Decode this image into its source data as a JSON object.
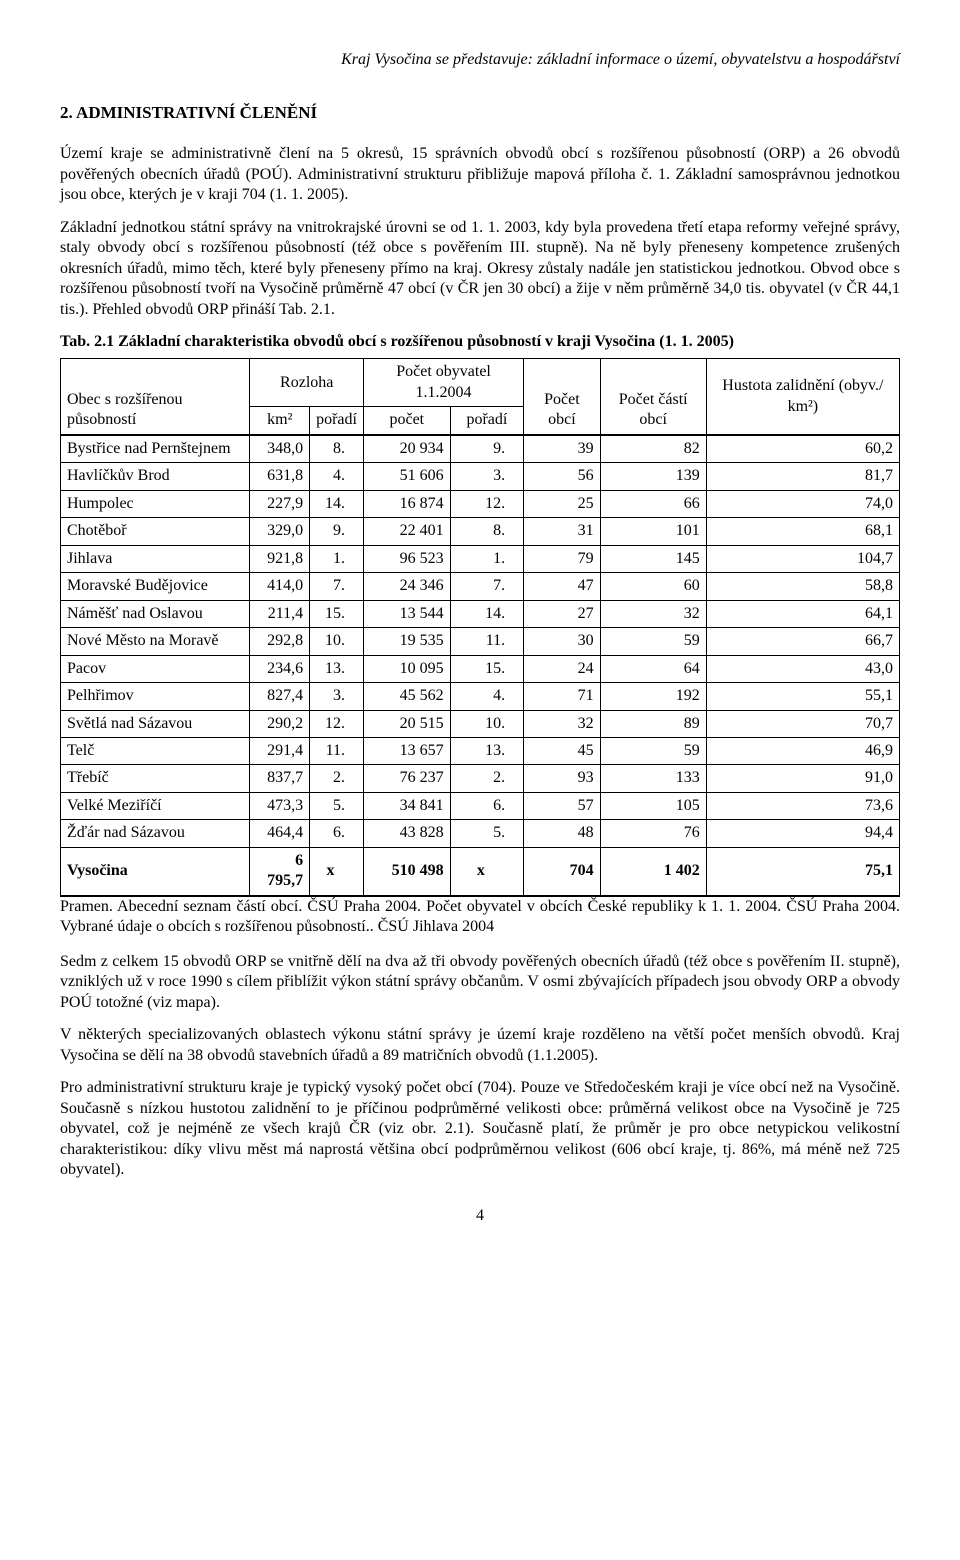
{
  "running_head": "Kraj Vysočina se představuje: základní informace o území, obyvatelstvu a hospodářství",
  "section_title": "2. ADMINISTRATIVNÍ ČLENĚNÍ",
  "para1": "Území kraje se administrativně člení na 5 okresů, 15 správních obvodů obcí s rozšířenou působností (ORP) a 26 obvodů pověřených obecních úřadů (POÚ). Administrativní strukturu přibližuje mapová příloha č. 1. Základní samosprávnou jednotkou jsou obce, kterých je v kraji 704 (1. 1. 2005).",
  "para2": "Základní jednotkou státní správy na vnitrokrajské úrovni se od 1. 1. 2003, kdy byla provedena třetí etapa reformy veřejné správy, staly obvody obcí s rozšířenou působností (též obce s pověřením III. stupně). Na ně byly přeneseny kompetence zrušených okresních úřadů, mimo těch, které byly přeneseny přímo na kraj. Okresy zůstaly nadále jen statistickou jednotkou. Obvod obce s rozšířenou působností tvoří na Vysočině průměrně 47 obcí (v ČR jen 30 obcí) a žije v něm průměrně 34,0 tis. obyvatel (v ČR 44,1 tis.). Přehled obvodů ORP přináší Tab. 2.1.",
  "table_caption": "Tab. 2.1 Základní charakteristika obvodů obcí s rozšířenou působností v kraji Vysočina (1. 1. 2005)",
  "headers": {
    "obec": "Obec s rozšířenou působností",
    "rozloha": "Rozloha",
    "km2": "km²",
    "poradi": "pořadí",
    "pocet_obyv": "Počet obyvatel 1.1.2004",
    "pocet": "počet",
    "pocet_obci": "Počet obcí",
    "casti_obci": "Počet částí obcí",
    "hustota": "Hustota zalidnění (obyv./ km²)"
  },
  "rows": [
    {
      "obec": "Bystřice nad Pernštejnem",
      "km2": "348,0",
      "r1": "8.",
      "pop": "20 934",
      "r2": "9.",
      "obci": "39",
      "casti": "82",
      "hust": "60,2"
    },
    {
      "obec": "Havlíčkův Brod",
      "km2": "631,8",
      "r1": "4.",
      "pop": "51 606",
      "r2": "3.",
      "obci": "56",
      "casti": "139",
      "hust": "81,7"
    },
    {
      "obec": "Humpolec",
      "km2": "227,9",
      "r1": "14.",
      "pop": "16 874",
      "r2": "12.",
      "obci": "25",
      "casti": "66",
      "hust": "74,0"
    },
    {
      "obec": "Chotěboř",
      "km2": "329,0",
      "r1": "9.",
      "pop": "22 401",
      "r2": "8.",
      "obci": "31",
      "casti": "101",
      "hust": "68,1"
    },
    {
      "obec": "Jihlava",
      "km2": "921,8",
      "r1": "1.",
      "pop": "96 523",
      "r2": "1.",
      "obci": "79",
      "casti": "145",
      "hust": "104,7"
    },
    {
      "obec": "Moravské Budějovice",
      "km2": "414,0",
      "r1": "7.",
      "pop": "24 346",
      "r2": "7.",
      "obci": "47",
      "casti": "60",
      "hust": "58,8"
    },
    {
      "obec": "Náměšť nad Oslavou",
      "km2": "211,4",
      "r1": "15.",
      "pop": "13 544",
      "r2": "14.",
      "obci": "27",
      "casti": "32",
      "hust": "64,1"
    },
    {
      "obec": "Nové Město na Moravě",
      "km2": "292,8",
      "r1": "10.",
      "pop": "19 535",
      "r2": "11.",
      "obci": "30",
      "casti": "59",
      "hust": "66,7"
    },
    {
      "obec": "Pacov",
      "km2": "234,6",
      "r1": "13.",
      "pop": "10 095",
      "r2": "15.",
      "obci": "24",
      "casti": "64",
      "hust": "43,0"
    },
    {
      "obec": "Pelhřimov",
      "km2": "827,4",
      "r1": "3.",
      "pop": "45 562",
      "r2": "4.",
      "obci": "71",
      "casti": "192",
      "hust": "55,1"
    },
    {
      "obec": "Světlá nad Sázavou",
      "km2": "290,2",
      "r1": "12.",
      "pop": "20 515",
      "r2": "10.",
      "obci": "32",
      "casti": "89",
      "hust": "70,7"
    },
    {
      "obec": "Telč",
      "km2": "291,4",
      "r1": "11.",
      "pop": "13 657",
      "r2": "13.",
      "obci": "45",
      "casti": "59",
      "hust": "46,9"
    },
    {
      "obec": "Třebíč",
      "km2": "837,7",
      "r1": "2.",
      "pop": "76 237",
      "r2": "2.",
      "obci": "93",
      "casti": "133",
      "hust": "91,0"
    },
    {
      "obec": "Velké Meziříčí",
      "km2": "473,3",
      "r1": "5.",
      "pop": "34 841",
      "r2": "6.",
      "obci": "57",
      "casti": "105",
      "hust": "73,6"
    },
    {
      "obec": "Žďár nad Sázavou",
      "km2": "464,4",
      "r1": "6.",
      "pop": "43 828",
      "r2": "5.",
      "obci": "48",
      "casti": "76",
      "hust": "94,4"
    }
  ],
  "total": {
    "obec": "Vysočina",
    "km2": "6 795,7",
    "r1": "x",
    "pop": "510 498",
    "r2": "x",
    "obci": "704",
    "casti": "1 402",
    "hust": "75,1"
  },
  "source": "Pramen. Abecední seznam částí obcí. ČSÚ Praha 2004. Počet obyvatel v obcích České republiky k 1. 1. 2004. ČSÚ Praha 2004. Vybrané údaje o obcích s rozšířenou působností.. ČSÚ Jihlava 2004",
  "para3": "Sedm z celkem 15 obvodů ORP se vnitřně dělí na dva až tři obvody pověřených obecních úřadů (též obce s pověřením II. stupně), vzniklých už v roce 1990 s cílem přiblížit výkon státní správy občanům. V osmi zbývajících případech jsou obvody ORP a obvody POÚ totožné (viz mapa).",
  "para4": "V některých specializovaných oblastech výkonu státní správy je území kraje rozděleno na větší počet menších obvodů. Kraj Vysočina se dělí na 38 obvodů stavebních úřadů a 89 matričních obvodů (1.1.2005).",
  "para5": "Pro administrativní strukturu kraje je typický vysoký počet obcí (704). Pouze ve Středočeském kraji je více obcí než na Vysočině. Současně s nízkou hustotou zalidnění to je příčinou podprůměrné velikosti obce: průměrná velikost obce na Vysočině je 725 obyvatel, což je nejméně ze všech krajů ČR (viz obr. 2.1). Současně platí, že průměr je pro obce netypickou velikostní charakteristikou: díky vlivu měst má naprostá většina obcí podprůměrnou velikost (606 obcí kraje, tj. 86%, má méně než 725 obyvatel).",
  "page_number": "4"
}
